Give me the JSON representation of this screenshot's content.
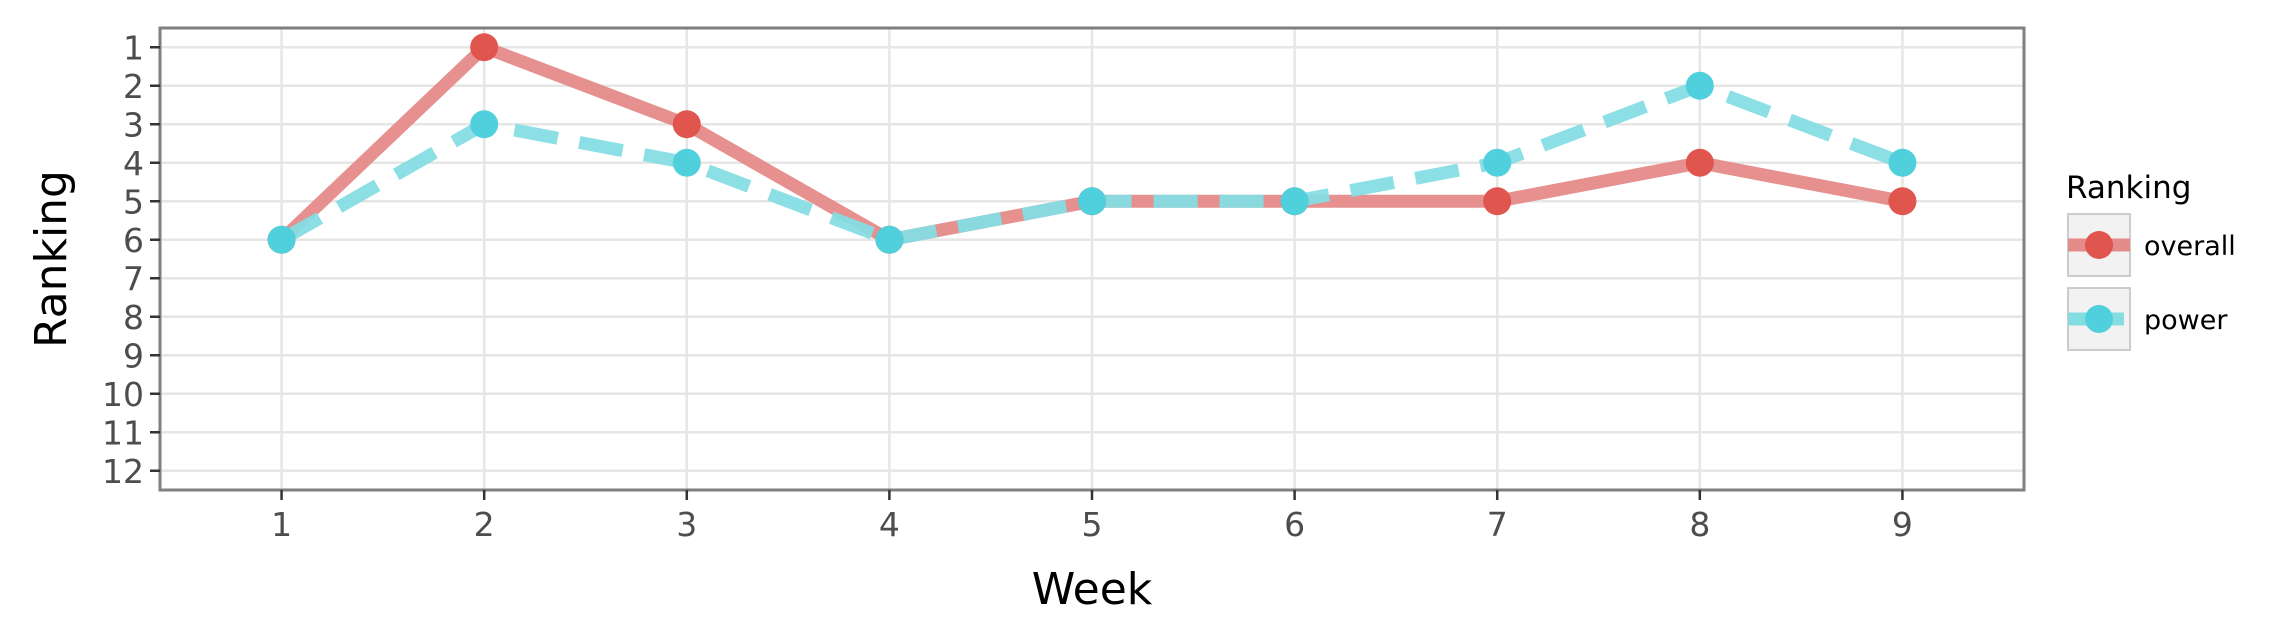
{
  "chart_data": {
    "type": "line",
    "title": "",
    "xlabel": "Week",
    "ylabel": "Ranking",
    "x": [
      1,
      2,
      3,
      4,
      5,
      6,
      7,
      8,
      9
    ],
    "x_ticks": [
      "1",
      "2",
      "3",
      "4",
      "5",
      "6",
      "7",
      "8",
      "9"
    ],
    "y_ticks": [
      "1",
      "2",
      "3",
      "4",
      "5",
      "6",
      "7",
      "8",
      "9",
      "10",
      "11",
      "12"
    ],
    "xlim": [
      0.4,
      9.6
    ],
    "ylim": [
      0.5,
      12.5
    ],
    "y_reversed": true,
    "grid": true,
    "legend": {
      "title": "Ranking",
      "position": "right"
    },
    "series": [
      {
        "name": "overall",
        "values": [
          6,
          1,
          3,
          6,
          5,
          5,
          5,
          4,
          5
        ],
        "color": "#e0554e",
        "line_color": "#e58b89",
        "style": "solid"
      },
      {
        "name": "power",
        "values": [
          6,
          3,
          4,
          6,
          5,
          5,
          4,
          2,
          4
        ],
        "color": "#4fd0dc",
        "line_color": "#85dde4",
        "style": "dashed"
      }
    ]
  }
}
